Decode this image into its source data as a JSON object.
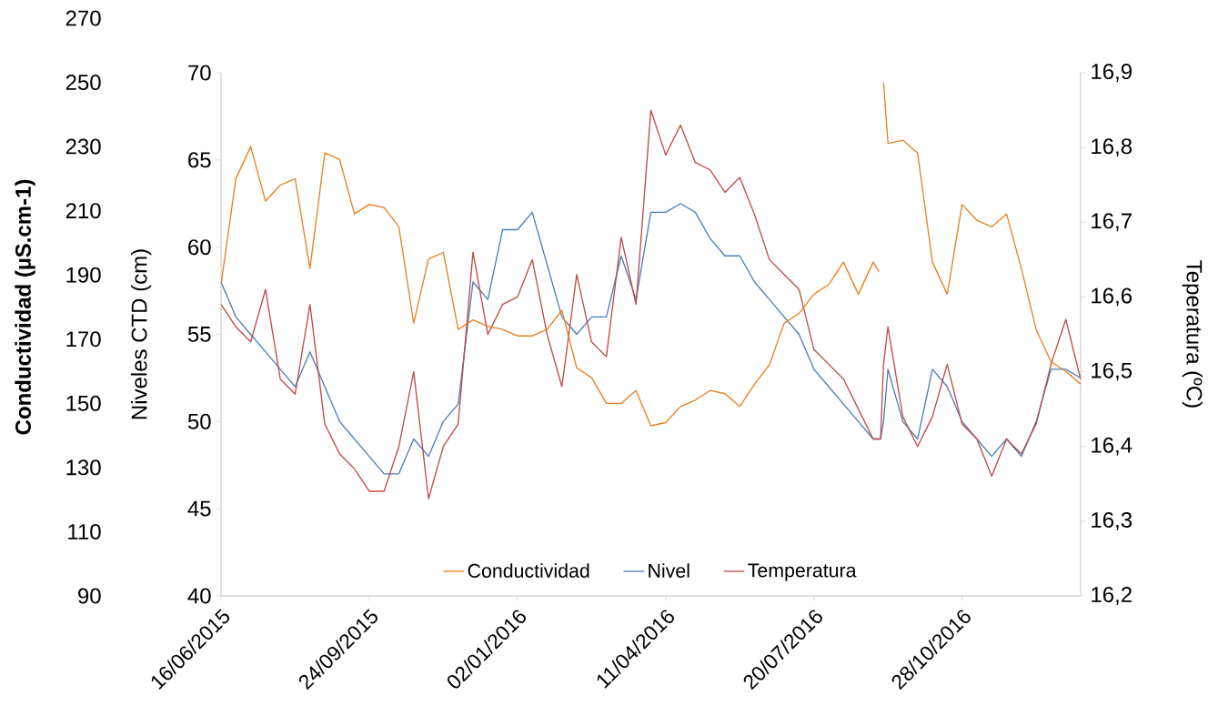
{
  "chart_data": {
    "type": "line",
    "ylabel": "Conductividad (µS.cm-1)",
    "y2label": "Teperatura (ºC)",
    "y3label": "Niveles CTD (cm)",
    "x": [
      "2015-06-16",
      "2015-06-26",
      "2015-07-06",
      "2015-07-16",
      "2015-07-26",
      "2015-08-05",
      "2015-08-15",
      "2015-08-25",
      "2015-09-04",
      "2015-09-14",
      "2015-09-24",
      "2015-10-04",
      "2015-10-14",
      "2015-10-24",
      "2015-11-03",
      "2015-11-13",
      "2015-11-23",
      "2015-12-03",
      "2015-12-13",
      "2015-12-23",
      "2016-01-02",
      "2016-01-12",
      "2016-01-22",
      "2016-02-01",
      "2016-02-11",
      "2016-02-21",
      "2016-03-02",
      "2016-03-12",
      "2016-03-22",
      "2016-04-01",
      "2016-04-11",
      "2016-04-21",
      "2016-05-01",
      "2016-05-11",
      "2016-05-21",
      "2016-05-31",
      "2016-06-10",
      "2016-06-20",
      "2016-06-30",
      "2016-07-10",
      "2016-07-20",
      "2016-07-30",
      "2016-08-09",
      "2016-08-19",
      "2016-08-29",
      "2016-09-02",
      "2016-09-03",
      "2016-09-05",
      "2016-09-08",
      "2016-09-18",
      "2016-09-28",
      "2016-10-08",
      "2016-10-18",
      "2016-10-28",
      "2016-11-07",
      "2016-11-17",
      "2016-11-27",
      "2016-12-07",
      "2016-12-17",
      "2016-12-27",
      "2017-01-06",
      "2017-01-16"
    ],
    "series": [
      {
        "name": "Conductividad",
        "color": "#e8801f",
        "axis": "y",
        "values": [
          187,
          220,
          230,
          213,
          218,
          220,
          192,
          228,
          226,
          209,
          212,
          211,
          205,
          175,
          195,
          197,
          173,
          176,
          174,
          173,
          171,
          171,
          173,
          179,
          161,
          158,
          150,
          150,
          154,
          143,
          144,
          149,
          151,
          154,
          153,
          149,
          156,
          162,
          175,
          178,
          184,
          187,
          194,
          184,
          194,
          191,
          null,
          250,
          231,
          232,
          228,
          194,
          184,
          212,
          207,
          205,
          209,
          192,
          173,
          163,
          160,
          156
        ]
      },
      {
        "name": "Nivel",
        "color": "#4a7ebb",
        "axis": "y3",
        "values": [
          58,
          56,
          55,
          54,
          53,
          52,
          54,
          52,
          50,
          49,
          48,
          47,
          47,
          49,
          48,
          50,
          51,
          58,
          57,
          61,
          61,
          62,
          59,
          56,
          55,
          56,
          56,
          59.5,
          57,
          62,
          62,
          62.5,
          62,
          60.5,
          59.5,
          59.5,
          58,
          57,
          56,
          55,
          53,
          52,
          51,
          50,
          49,
          49,
          49,
          50,
          53,
          50,
          49,
          53,
          52,
          50,
          49,
          48,
          49,
          48,
          50,
          53,
          53,
          52.5
        ]
      },
      {
        "name": "Temperatura",
        "color": "#be4b48",
        "axis": "y2",
        "values": [
          16.59,
          16.56,
          16.54,
          16.61,
          16.49,
          16.47,
          16.59,
          16.43,
          16.39,
          16.37,
          16.34,
          16.34,
          16.4,
          16.5,
          16.33,
          16.4,
          16.43,
          16.66,
          16.55,
          16.59,
          16.6,
          16.65,
          16.55,
          16.48,
          16.63,
          16.54,
          16.52,
          16.68,
          16.59,
          16.85,
          16.79,
          16.83,
          16.78,
          16.77,
          16.74,
          16.76,
          16.71,
          16.65,
          16.63,
          16.61,
          16.53,
          16.51,
          16.49,
          16.45,
          16.41,
          16.41,
          16.41,
          16.51,
          16.56,
          16.44,
          16.4,
          16.44,
          16.51,
          16.43,
          16.41,
          16.36,
          16.41,
          16.39,
          16.43,
          16.51,
          16.57,
          16.49
        ]
      }
    ],
    "xlim": [
      "2015-06-16",
      "2017-01-16"
    ],
    "xticks": [
      {
        "value": "2015-06-16",
        "label": "16/06/2015"
      },
      {
        "value": "2015-09-24",
        "label": "24/09/2015"
      },
      {
        "value": "2016-01-02",
        "label": "02/01/2016"
      },
      {
        "value": "2016-04-11",
        "label": "11/04/2016"
      },
      {
        "value": "2016-07-20",
        "label": "20/07/2016"
      },
      {
        "value": "2016-10-28",
        "label": "28/10/2016"
      }
    ],
    "ylim": [
      90,
      270
    ],
    "yticks": [
      90,
      110,
      130,
      150,
      170,
      190,
      210,
      230,
      250,
      270
    ],
    "y2lim": [
      16.2,
      16.9
    ],
    "y2ticks": [
      {
        "value": 16.2,
        "label": "16,2"
      },
      {
        "value": 16.3,
        "label": "16,3"
      },
      {
        "value": 16.4,
        "label": "16,4"
      },
      {
        "value": 16.5,
        "label": "16,5"
      },
      {
        "value": 16.6,
        "label": "16,6"
      },
      {
        "value": 16.7,
        "label": "16,7"
      },
      {
        "value": 16.8,
        "label": "16,8"
      },
      {
        "value": 16.9,
        "label": "16,9"
      }
    ],
    "y3lim": [
      40,
      70
    ],
    "y3ticks": [
      40,
      45,
      50,
      55,
      60,
      65,
      70
    ],
    "legend": "bottom",
    "marker": "none",
    "line_style": "solid"
  }
}
